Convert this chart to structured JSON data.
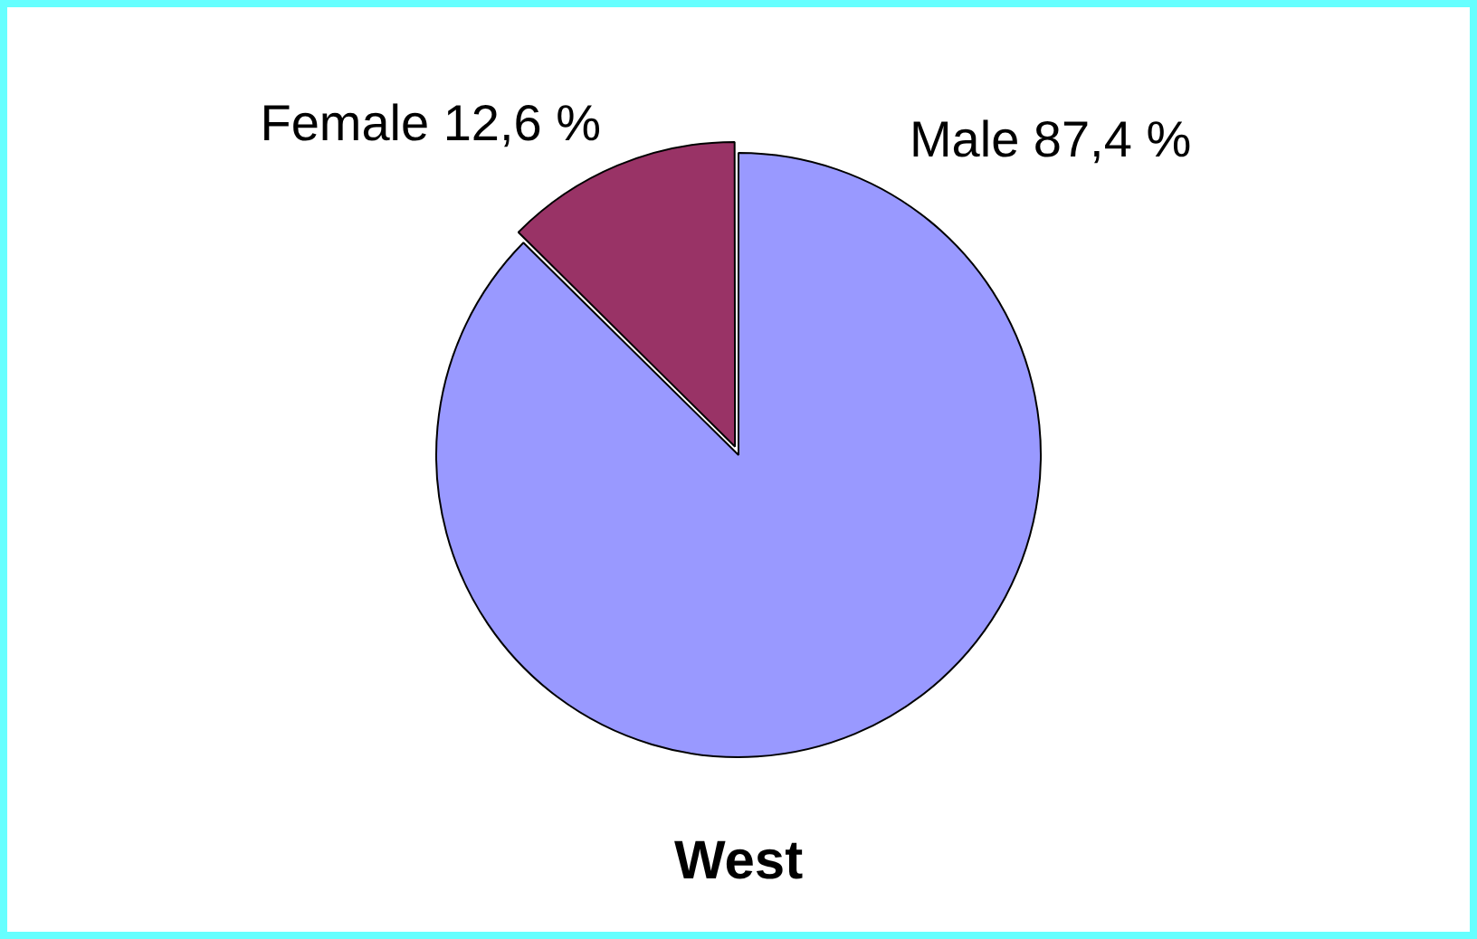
{
  "chart_data": {
    "type": "pie",
    "title": "West",
    "categories": [
      "Female",
      "Male"
    ],
    "values": [
      12.6,
      87.4
    ],
    "colors": [
      "#993366",
      "#9999ff"
    ],
    "value_labels": [
      "12,6 %",
      "87,4 %"
    ],
    "legend": false
  }
}
